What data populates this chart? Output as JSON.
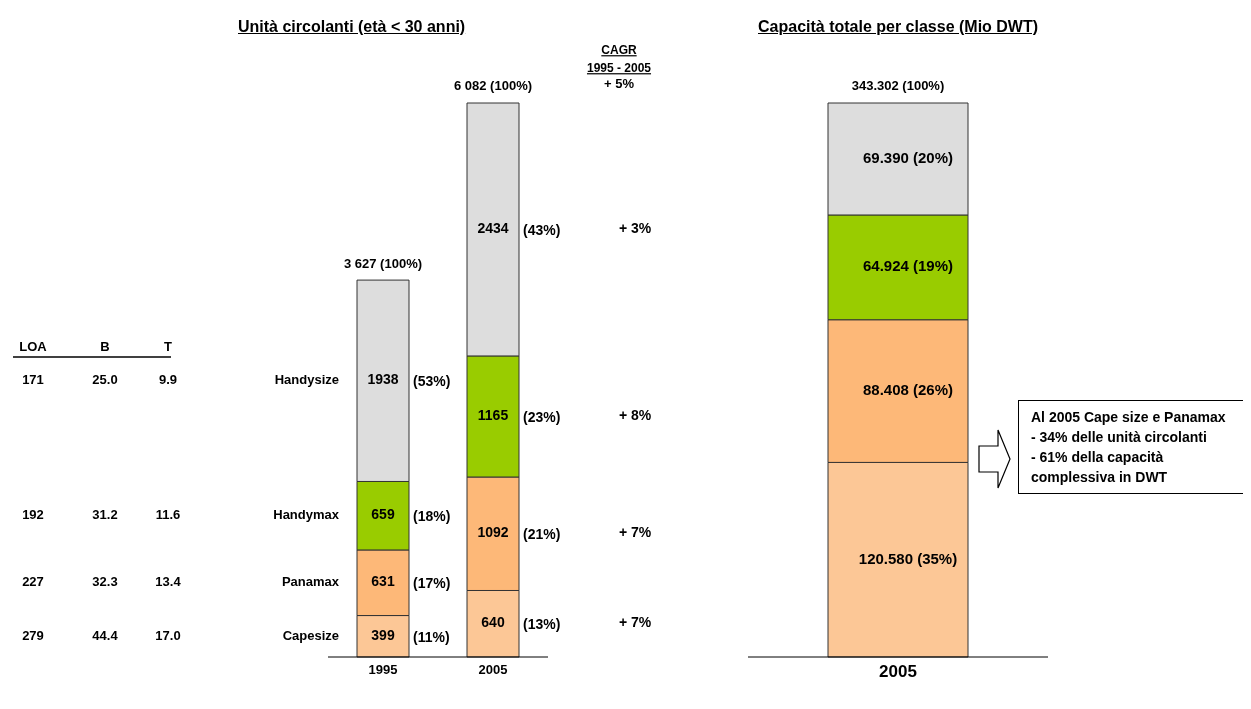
{
  "chart_data": [
    {
      "type": "bar",
      "title": "Unità circolanti (età < 30 anni)",
      "stacked": true,
      "legend": false,
      "grid": false,
      "categories": [
        "1995",
        "2005"
      ],
      "series": [
        {
          "name": "Capesize",
          "color": "#fcc796",
          "values": [
            399,
            640
          ],
          "value_labels": [
            "399 (11%)",
            "640 (13%)"
          ]
        },
        {
          "name": "Panamax",
          "color": "#fdb878",
          "values": [
            631,
            1092
          ],
          "value_labels": [
            "631 (17%)",
            "1092 (21%)"
          ]
        },
        {
          "name": "Handymax",
          "color": "#99cc00",
          "values": [
            659,
            1165
          ],
          "value_labels": [
            "659 (18%)",
            "1165 (23%)"
          ]
        },
        {
          "name": "Handysize",
          "color": "#dddddd",
          "values": [
            1938,
            2434
          ],
          "value_labels": [
            "1938 (53%)",
            "2434 (43%)"
          ]
        }
      ],
      "totals": [
        "3 627 (100%)",
        "6 082 (100%)"
      ],
      "annotations": [
        "LOA",
        "B",
        "T",
        "279",
        "44.4",
        "17.0",
        "227",
        "32.3",
        "13.4",
        "192",
        "31.2",
        "11.6",
        "171",
        "25.0",
        "9.9",
        "CAGR",
        "1995 - 2005",
        "+  5%",
        "+ 7%",
        "+ 7%",
        "+ 8%",
        "+ 3%"
      ]
    },
    {
      "type": "bar",
      "title": "Capacità totale per classe (Mio DWT)",
      "stacked": true,
      "legend": false,
      "grid": false,
      "categories": [
        "2005"
      ],
      "series": [
        {
          "color": "#fcc796",
          "values": [
            120.58
          ],
          "value_labels": [
            "120.580 (35%)"
          ]
        },
        {
          "color": "#fdb878",
          "values": [
            88.408
          ],
          "value_labels": [
            "88.408 (26%)"
          ]
        },
        {
          "color": "#99cc00",
          "values": [
            64.924
          ],
          "value_labels": [
            "64.924 (19%)"
          ]
        },
        {
          "color": "#dddddd",
          "values": [
            69.39
          ],
          "value_labels": [
            "69.390 (20%)"
          ]
        }
      ],
      "totals": [
        "343.302 (100%)"
      ],
      "annotations": [
        "Al 2005 Cape size e Panamax",
        "- 34% delle unità circolanti",
        "- 61% della capacità complessiva in DWT"
      ]
    }
  ]
}
